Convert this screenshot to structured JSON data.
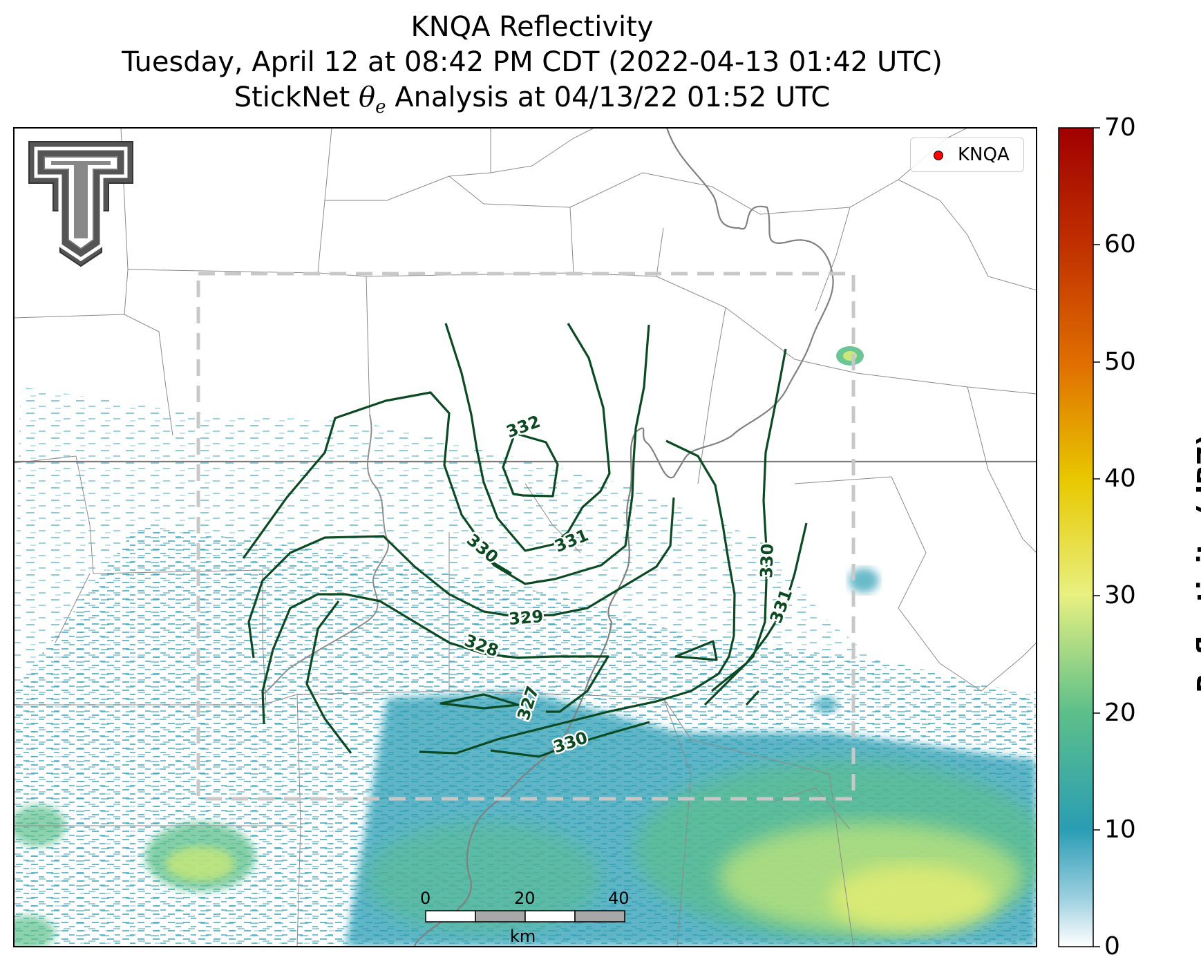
{
  "title": {
    "line1": "KNQA Reflectivity",
    "line2": "Tuesday, April 12 at 08:42 PM CDT (2022-04-13 01:42 UTC)",
    "line3_prefix": "StickNet",
    "line3_symbol": "θ",
    "line3_subscript": "e",
    "line3_suffix": "Analysis at 04/13/22 01:52 UTC"
  },
  "legend": {
    "label": "KNQA",
    "marker_color": "#ff0000"
  },
  "colorbar": {
    "label": "Reflectivity (dBZ)",
    "range": [
      0,
      70
    ],
    "ticks": [
      "0",
      "10",
      "20",
      "30",
      "40",
      "50",
      "60",
      "70"
    ],
    "colormap": [
      "#ffffff",
      "#2a9db4",
      "#5cbf8a",
      "#e8f080",
      "#e8c800",
      "#e07000",
      "#c03000",
      "#a00000"
    ]
  },
  "scale_bar": {
    "ticks": [
      "0",
      "20",
      "40"
    ],
    "unit": "km"
  },
  "contours": {
    "field": "theta-e",
    "line_color": "#0b4a22",
    "labels": [
      "332",
      "331",
      "330",
      "329",
      "328",
      "327",
      "330",
      "330",
      "331"
    ]
  },
  "logo": {
    "name": "Texas Tech Double T"
  },
  "analysis_box": {
    "style": "dashed",
    "color": "#c8c8c8"
  }
}
